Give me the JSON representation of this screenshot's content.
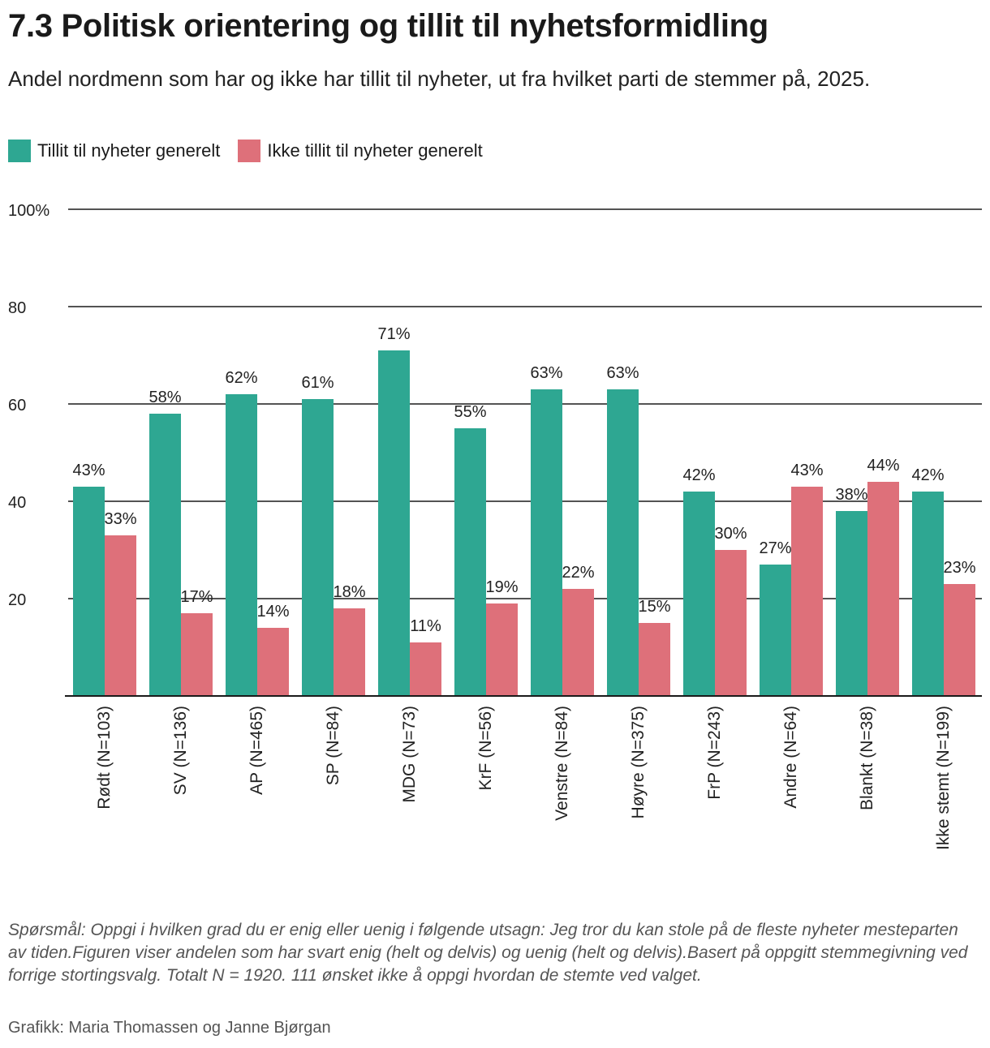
{
  "header": {
    "title": "7.3 Politisk orientering og tillit til nyhetsformidling",
    "subtitle": "Andel nordmenn som har og ikke har tillit til nyheter, ut fra hvilket parti de stemmer på, 2025."
  },
  "legend": [
    {
      "label": "Tillit til nyheter generelt",
      "color": "#2ea792"
    },
    {
      "label": "Ikke tillit til nyheter generelt",
      "color": "#de707a"
    }
  ],
  "chart_data": {
    "type": "bar",
    "categories": [
      "Rødt (N=103)",
      "SV (N=136)",
      "AP (N=465)",
      "SP (N=84)",
      "MDG (N=73)",
      "KrF (N=56)",
      "Venstre (N=84)",
      "Høyre (N=375)",
      "FrP (N=243)",
      "Andre (N=64)",
      "Blankt (N=38)",
      "Ikke stemt (N=199)"
    ],
    "series": [
      {
        "name": "Tillit til nyheter generelt",
        "color": "#2ea792",
        "values": [
          43,
          58,
          62,
          61,
          71,
          55,
          63,
          63,
          42,
          27,
          38,
          42
        ]
      },
      {
        "name": "Ikke tillit til nyheter generelt",
        "color": "#de707a",
        "values": [
          33,
          17,
          14,
          18,
          11,
          19,
          22,
          15,
          30,
          43,
          44,
          23
        ]
      }
    ],
    "yticks": [
      "20",
      "40",
      "60",
      "80",
      "100%"
    ],
    "ytick_values": [
      20,
      40,
      60,
      80,
      100
    ],
    "ylim": [
      0,
      100
    ],
    "value_suffix": "%",
    "grid": true,
    "legend_position": "top-left"
  },
  "footer": {
    "note": "Spørsmål: Oppgi i hvilken grad du er enig eller uenig i følgende utsagn: Jeg tror du kan stole på de fleste nyheter mesteparten av tiden.Figuren viser andelen som har svart enig (helt og delvis) og uenig (helt og delvis).Basert på oppgitt stemmegivning ved forrige stortingsvalg. Totalt N = 1920. 111 ønsket ikke å oppgi hvordan de stemte ved valget.",
    "credit": "Grafikk: Maria Thomassen og Janne Bjørgan"
  }
}
